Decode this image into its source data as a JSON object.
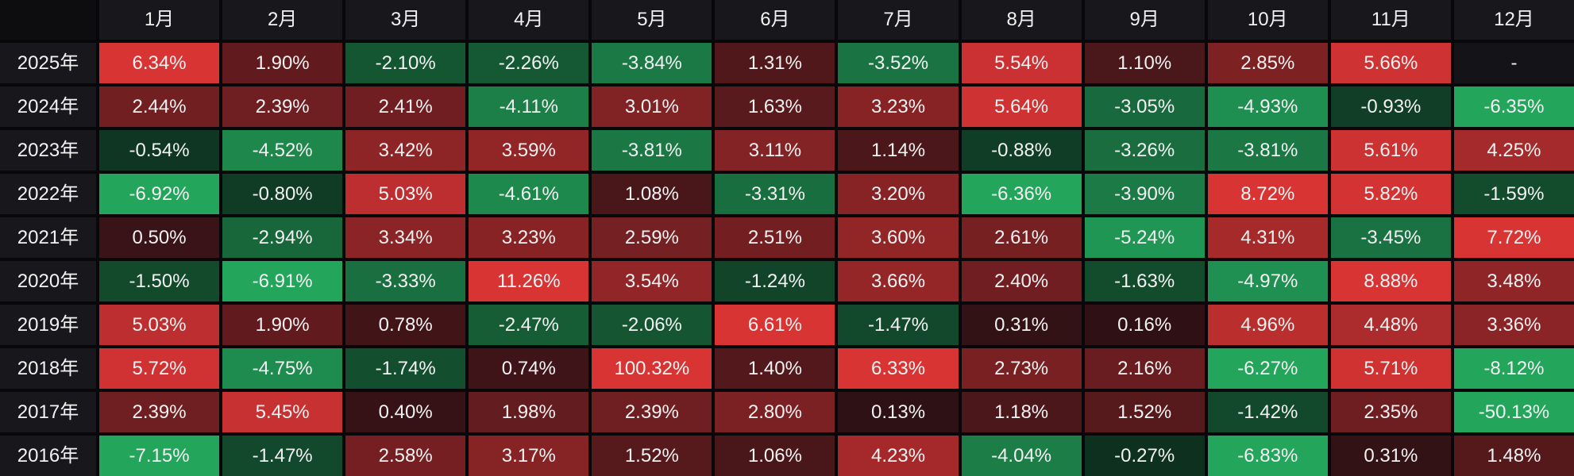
{
  "chart_data": {
    "type": "heatmap",
    "title": "",
    "columns": [
      "1月",
      "2月",
      "3月",
      "4月",
      "5月",
      "6月",
      "7月",
      "8月",
      "9月",
      "10月",
      "11月",
      "12月"
    ],
    "rows": [
      "2025年",
      "2024年",
      "2023年",
      "2022年",
      "2021年",
      "2020年",
      "2019年",
      "2018年",
      "2017年",
      "2016年"
    ],
    "values": [
      [
        6.34,
        1.9,
        -2.1,
        -2.26,
        -3.84,
        1.31,
        -3.52,
        5.54,
        1.1,
        2.85,
        5.66,
        null
      ],
      [
        2.44,
        2.39,
        2.41,
        -4.11,
        3.01,
        1.63,
        3.23,
        5.64,
        -3.05,
        -4.93,
        -0.93,
        -6.35
      ],
      [
        -0.54,
        -4.52,
        3.42,
        3.59,
        -3.81,
        3.11,
        1.14,
        -0.88,
        -3.26,
        -3.81,
        5.61,
        4.25
      ],
      [
        -6.92,
        -0.8,
        5.03,
        -4.61,
        1.08,
        -3.31,
        3.2,
        -6.36,
        -3.9,
        8.72,
        5.82,
        -1.59
      ],
      [
        0.5,
        -2.94,
        3.34,
        3.23,
        2.59,
        2.51,
        3.6,
        2.61,
        -5.24,
        4.31,
        -3.45,
        7.72
      ],
      [
        -1.5,
        -6.91,
        -3.33,
        11.26,
        3.54,
        -1.24,
        3.66,
        2.4,
        -1.63,
        -4.97,
        8.88,
        3.48
      ],
      [
        5.03,
        1.9,
        0.78,
        -2.47,
        -2.06,
        6.61,
        -1.47,
        0.31,
        0.16,
        4.96,
        4.48,
        3.36
      ],
      [
        5.72,
        -4.75,
        -1.74,
        0.74,
        100.32,
        1.4,
        6.33,
        2.73,
        2.16,
        -6.27,
        5.71,
        -8.12
      ],
      [
        2.39,
        5.45,
        0.4,
        1.98,
        2.39,
        2.8,
        0.13,
        1.18,
        1.52,
        -1.42,
        2.35,
        -50.13
      ],
      [
        -7.15,
        -1.47,
        2.58,
        3.17,
        1.52,
        1.06,
        4.23,
        -4.04,
        -0.27,
        -6.83,
        0.31,
        1.48
      ]
    ],
    "display": [
      [
        "6.34%",
        "1.90%",
        "-2.10%",
        "-2.26%",
        "-3.84%",
        "1.31%",
        "-3.52%",
        "5.54%",
        "1.10%",
        "2.85%",
        "5.66%",
        "-"
      ],
      [
        "2.44%",
        "2.39%",
        "2.41%",
        "-4.11%",
        "3.01%",
        "1.63%",
        "3.23%",
        "5.64%",
        "-3.05%",
        "-4.93%",
        "-0.93%",
        "-6.35%"
      ],
      [
        "-0.54%",
        "-4.52%",
        "3.42%",
        "3.59%",
        "-3.81%",
        "3.11%",
        "1.14%",
        "-0.88%",
        "-3.26%",
        "-3.81%",
        "5.61%",
        "4.25%"
      ],
      [
        "-6.92%",
        "-0.80%",
        "5.03%",
        "-4.61%",
        "1.08%",
        "-3.31%",
        "3.20%",
        "-6.36%",
        "-3.90%",
        "8.72%",
        "5.82%",
        "-1.59%"
      ],
      [
        "0.50%",
        "-2.94%",
        "3.34%",
        "3.23%",
        "2.59%",
        "2.51%",
        "3.60%",
        "2.61%",
        "-5.24%",
        "4.31%",
        "-3.45%",
        "7.72%"
      ],
      [
        "-1.50%",
        "-6.91%",
        "-3.33%",
        "11.26%",
        "3.54%",
        "-1.24%",
        "3.66%",
        "2.40%",
        "-1.63%",
        "-4.97%",
        "8.88%",
        "3.48%"
      ],
      [
        "5.03%",
        "1.90%",
        "0.78%",
        "-2.47%",
        "-2.06%",
        "6.61%",
        "-1.47%",
        "0.31%",
        "0.16%",
        "4.96%",
        "4.48%",
        "3.36%"
      ],
      [
        "5.72%",
        "-4.75%",
        "-1.74%",
        "0.74%",
        "100.32%",
        "1.40%",
        "6.33%",
        "2.73%",
        "2.16%",
        "-6.27%",
        "5.71%",
        "-8.12%"
      ],
      [
        "2.39%",
        "5.45%",
        "0.40%",
        "1.98%",
        "2.39%",
        "2.80%",
        "0.13%",
        "1.18%",
        "1.52%",
        "-1.42%",
        "2.35%",
        "-50.13%"
      ],
      [
        "-7.15%",
        "-1.47%",
        "2.58%",
        "3.17%",
        "1.52%",
        "1.06%",
        "4.23%",
        "-4.04%",
        "-0.27%",
        "-6.83%",
        "0.31%",
        "1.48%"
      ]
    ],
    "color_convention": "red = positive (gain), green = negative (loss)",
    "saturation_cap_pct": 6
  },
  "colors": {
    "background": "#08080a",
    "header_bg": "#17171c",
    "year_bg": "#17171c",
    "neutral_cell_bg": "#141418",
    "text": "#f2f2f2",
    "pos_low": "#2a1014",
    "pos_high": "#d83434",
    "neg_low": "#0d2b1c",
    "neg_high": "#23a55c"
  }
}
